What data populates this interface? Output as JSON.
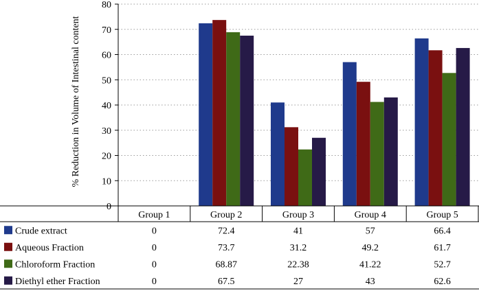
{
  "chart_data": {
    "type": "bar",
    "title": "",
    "xlabel": "",
    "ylabel": "% Reduction in Volume of Intestinal content",
    "ylim": [
      0,
      80
    ],
    "yticks": [
      0,
      10,
      20,
      30,
      40,
      50,
      60,
      70,
      80
    ],
    "grid": "horizontal dotted",
    "categories": [
      "Group 1",
      "Group 2",
      "Group 3",
      "Group 4",
      "Group 5"
    ],
    "series": [
      {
        "name": "Crude extract",
        "color": "#1f3a8c",
        "values": [
          0,
          72.4,
          41,
          57,
          66.4
        ],
        "labels": [
          "0",
          "72.4",
          "41",
          "57",
          "66.4"
        ]
      },
      {
        "name": "Aqueous Fraction",
        "color": "#7a1010",
        "values": [
          0,
          73.7,
          31.2,
          49.2,
          61.7
        ],
        "labels": [
          "0",
          "73.7",
          "31.2",
          "49.2",
          "61.7"
        ]
      },
      {
        "name": "Chloroform Fraction",
        "color": "#3f6a17",
        "values": [
          0,
          68.87,
          22.38,
          41.22,
          52.7
        ],
        "labels": [
          "0",
          "68.87",
          "22.38",
          "41.22",
          "52.7"
        ]
      },
      {
        "name": "Diethyl ether Fraction",
        "color": "#261a47",
        "values": [
          0,
          67.5,
          27,
          43,
          62.6
        ],
        "labels": [
          "0",
          "67.5",
          "27",
          "43",
          "62.6"
        ]
      }
    ],
    "legend": "data table below chart"
  }
}
